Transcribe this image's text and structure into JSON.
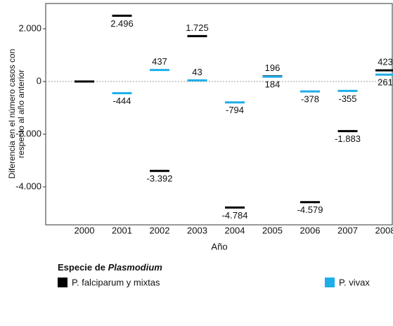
{
  "chart_data": {
    "type": "dash",
    "y_label_lines": [
      "Diferencia en el número casos con",
      "respecto al año anterior"
    ],
    "x_label": "Año",
    "categories": [
      "2000",
      "2001",
      "2002",
      "2003",
      "2004",
      "2005",
      "2006",
      "2007",
      "2008"
    ],
    "series": [
      {
        "name": "P. falciparum y mixtas",
        "color": "#000000",
        "values": [
          0,
          2496,
          -3392,
          1725,
          -4784,
          196,
          -4579,
          -1883,
          423
        ],
        "value_labels": [
          null,
          "2.496",
          "-3.392",
          "1.725",
          "-4.784",
          "196",
          "-4.579",
          "-1.883",
          "423"
        ]
      },
      {
        "name": "P. vivax",
        "color": "#1eaee8",
        "values": [
          null,
          -444,
          437,
          43,
          -794,
          184,
          -378,
          -355,
          261
        ],
        "value_labels": [
          null,
          "-444",
          "437",
          "43",
          "-794",
          "184",
          "-378",
          "-355",
          "261"
        ]
      }
    ],
    "ylim": [
      -5440,
      2960
    ],
    "yticks": [
      {
        "value": 2000,
        "label": "2.000"
      },
      0,
      {
        "value": -2000,
        "label": "-2.000"
      },
      {
        "value": -4000,
        "label": "-4.000"
      }
    ],
    "zero_line": true,
    "legend_title": "Especie de",
    "legend_title_italic": "Plasmodium"
  }
}
